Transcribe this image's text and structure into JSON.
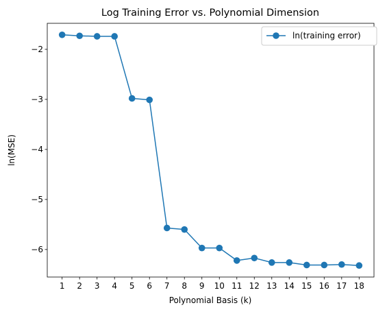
{
  "chart_data": {
    "type": "line",
    "title": "Log Training Error vs. Polynomial Dimension",
    "xlabel": "Polynomial Basis (k)",
    "ylabel": "ln(MSE)",
    "x": [
      1,
      2,
      3,
      4,
      5,
      6,
      7,
      8,
      9,
      10,
      11,
      12,
      13,
      14,
      15,
      16,
      17,
      18
    ],
    "x_ticks": [
      "1",
      "2",
      "3",
      "4",
      "5",
      "6",
      "7",
      "8",
      "9",
      "10",
      "11",
      "12",
      "13",
      "14",
      "15",
      "16",
      "17",
      "18"
    ],
    "y_ticks": [
      -2,
      -3,
      -4,
      -5,
      -6
    ],
    "y_tick_labels": [
      "−2",
      "−3",
      "−4",
      "−5",
      "−6"
    ],
    "xlim": [
      0.15,
      18.85
    ],
    "ylim": [
      -6.55,
      -1.48
    ],
    "grid": false,
    "legend_position": "top-right",
    "series": [
      {
        "name": "ln(training error)",
        "color": "#1f77b4",
        "marker": "circle",
        "values": [
          -1.71,
          -1.73,
          -1.74,
          -1.74,
          -2.98,
          -3.01,
          -5.57,
          -5.6,
          -5.97,
          -5.97,
          -6.22,
          -6.17,
          -6.26,
          -6.26,
          -6.31,
          -6.31,
          -6.3,
          -6.32
        ]
      }
    ]
  }
}
